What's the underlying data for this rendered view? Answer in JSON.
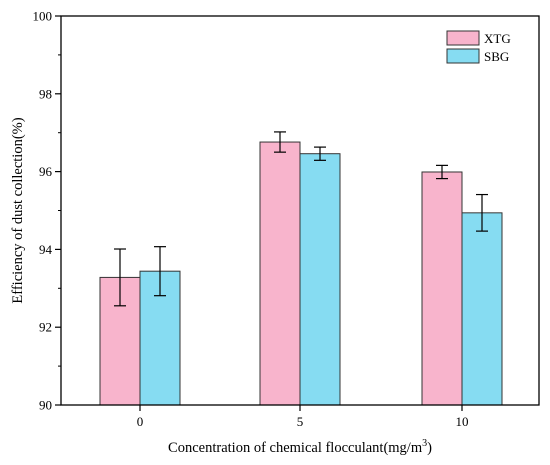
{
  "chart_data": {
    "type": "bar",
    "xlabel": "Concentration of chemical flocculant(mg/m",
    "xlabel_sup": "3",
    "xlabel_suffix": ")",
    "ylabel": "Efficiency of dust collection(%)",
    "ylim": [
      90,
      100
    ],
    "yticks": [
      90,
      92,
      94,
      96,
      98,
      100
    ],
    "categories": [
      "0",
      "5",
      "10"
    ],
    "series": [
      {
        "name": "XTG",
        "color": "#f8b4cc",
        "values": [
          93.28,
          96.76,
          95.99
        ],
        "errors": [
          0.73,
          0.26,
          0.17
        ]
      },
      {
        "name": "SBG",
        "color": "#86dcf2",
        "values": [
          93.44,
          96.46,
          94.94
        ],
        "errors": [
          0.63,
          0.17,
          0.47
        ]
      }
    ],
    "legend_position": "top-right",
    "grid": false
  }
}
